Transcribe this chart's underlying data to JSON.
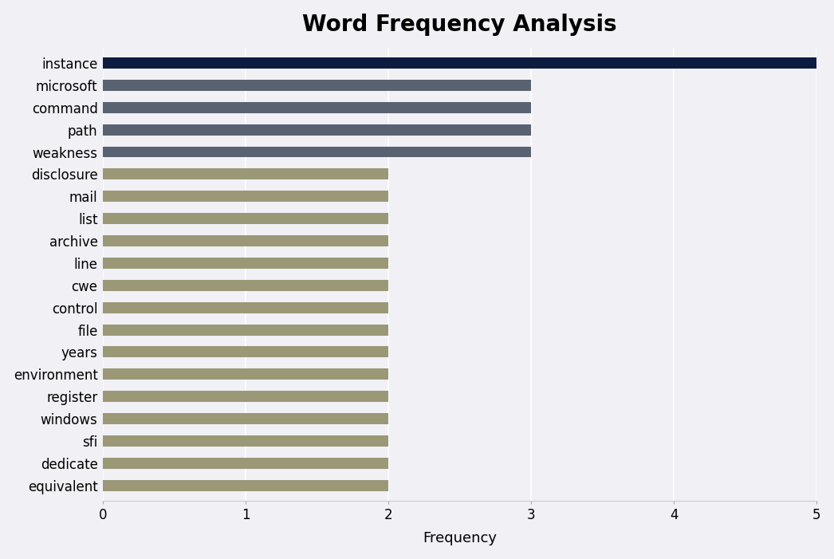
{
  "title": "Word Frequency Analysis",
  "xlabel": "Frequency",
  "categories": [
    "equivalent",
    "dedicate",
    "sfi",
    "windows",
    "register",
    "environment",
    "years",
    "file",
    "control",
    "cwe",
    "line",
    "archive",
    "list",
    "mail",
    "disclosure",
    "weakness",
    "path",
    "command",
    "microsoft",
    "instance"
  ],
  "values": [
    2,
    2,
    2,
    2,
    2,
    2,
    2,
    2,
    2,
    2,
    2,
    2,
    2,
    2,
    2,
    3,
    3,
    3,
    3,
    5
  ],
  "bar_colors": [
    "#9b9878",
    "#9b9878",
    "#9b9878",
    "#9b9878",
    "#9b9878",
    "#9b9878",
    "#9b9878",
    "#9b9878",
    "#9b9878",
    "#9b9878",
    "#9b9878",
    "#9b9878",
    "#9b9878",
    "#9b9878",
    "#9b9878",
    "#596270",
    "#596270",
    "#596270",
    "#596270",
    "#0d1b40"
  ],
  "xlim": [
    0,
    5.0
  ],
  "xticks": [
    0,
    1,
    2,
    3,
    4,
    5
  ],
  "background_color": "#f0f0f5",
  "title_fontsize": 20,
  "label_fontsize": 13,
  "tick_fontsize": 12,
  "bar_height": 0.5
}
